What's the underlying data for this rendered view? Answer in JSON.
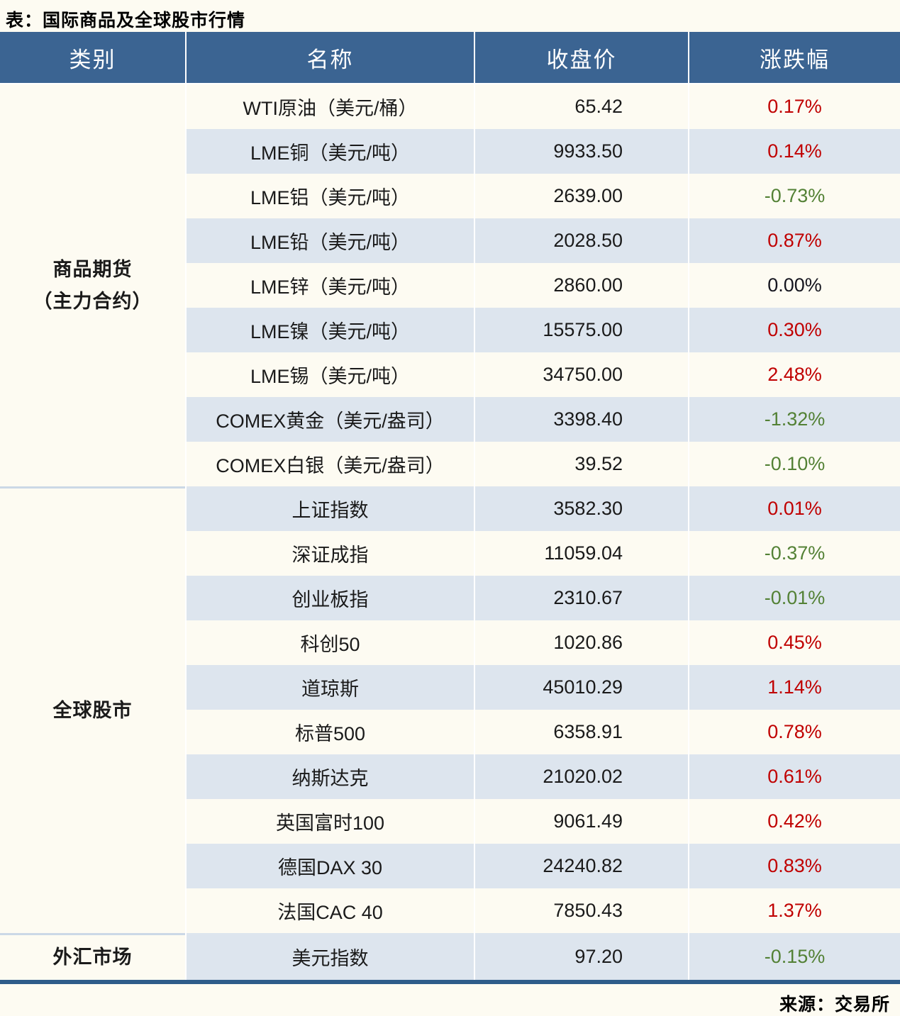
{
  "page": {
    "title": "表：国际商品及全球股市行情",
    "source": "来源：交易所"
  },
  "table": {
    "headers": [
      "类别",
      "名称",
      "收盘价",
      "涨跌幅"
    ],
    "colors": {
      "up_red": "#C00000",
      "down_green": "#538135",
      "flat_black": "#15151F",
      "header_bg": "#3B6492",
      "band_bg": "#DDE5EE",
      "page_bg": "#FDFBF2",
      "bottom_rule": "#2E5C8A"
    },
    "sections": [
      {
        "category": "商品期货\n（主力合约）",
        "rows": [
          {
            "name": "WTI原油（美元/桶）",
            "close": "65.42",
            "change": "0.17%",
            "direction": "up"
          },
          {
            "name": "LME铜（美元/吨）",
            "close": "9933.50",
            "change": "0.14%",
            "direction": "up"
          },
          {
            "name": "LME铝（美元/吨）",
            "close": "2639.00",
            "change": "-0.73%",
            "direction": "down"
          },
          {
            "name": "LME铅（美元/吨）",
            "close": "2028.50",
            "change": "0.87%",
            "direction": "up"
          },
          {
            "name": "LME锌（美元/吨）",
            "close": "2860.00",
            "change": "0.00%",
            "direction": "flat"
          },
          {
            "name": "LME镍（美元/吨）",
            "close": "15575.00",
            "change": "0.30%",
            "direction": "up"
          },
          {
            "name": "LME锡（美元/吨）",
            "close": "34750.00",
            "change": "2.48%",
            "direction": "up"
          },
          {
            "name": "COMEX黄金（美元/盎司）",
            "close": "3398.40",
            "change": "-1.32%",
            "direction": "down"
          },
          {
            "name": "COMEX白银（美元/盎司）",
            "close": "39.52",
            "change": "-0.10%",
            "direction": "down"
          }
        ]
      },
      {
        "category": "全球股市",
        "rows": [
          {
            "name": "上证指数",
            "close": "3582.30",
            "change": "0.01%",
            "direction": "up"
          },
          {
            "name": "深证成指",
            "close": "11059.04",
            "change": "-0.37%",
            "direction": "down"
          },
          {
            "name": "创业板指",
            "close": "2310.67",
            "change": "-0.01%",
            "direction": "down"
          },
          {
            "name": "科创50",
            "close": "1020.86",
            "change": "0.45%",
            "direction": "up"
          },
          {
            "name": "道琼斯",
            "close": "45010.29",
            "change": "1.14%",
            "direction": "up"
          },
          {
            "name": "标普500",
            "close": "6358.91",
            "change": "0.78%",
            "direction": "up"
          },
          {
            "name": "纳斯达克",
            "close": "21020.02",
            "change": "0.61%",
            "direction": "up"
          },
          {
            "name": "英国富时100",
            "close": "9061.49",
            "change": "0.42%",
            "direction": "up"
          },
          {
            "name": "德国DAX 30",
            "close": "24240.82",
            "change": "0.83%",
            "direction": "up"
          },
          {
            "name": "法国CAC 40",
            "close": "7850.43",
            "change": "1.37%",
            "direction": "up"
          }
        ]
      },
      {
        "category": "外汇市场",
        "rows": [
          {
            "name": "美元指数",
            "close": "97.20",
            "change": "-0.15%",
            "direction": "down"
          }
        ]
      }
    ]
  }
}
